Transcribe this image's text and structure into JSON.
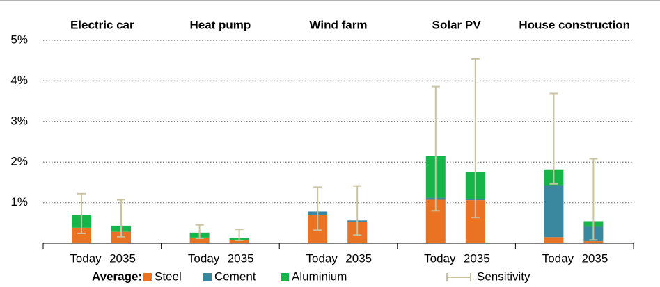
{
  "chart_data": {
    "type": "stacked_bar_error",
    "groups": [
      "Electric car",
      "Heat pump",
      "Wind farm",
      "Solar PV",
      "House construction"
    ],
    "periods": [
      "Today",
      "2035"
    ],
    "series": [
      {
        "name": "Steel",
        "color": "#e97323",
        "values": [
          0.38,
          0.28,
          0.14,
          0.08,
          0.7,
          0.52,
          1.07,
          1.06,
          0.15,
          0.05
        ]
      },
      {
        "name": "Cement",
        "color": "#3a87a0",
        "values": [
          0,
          0,
          0,
          0,
          0.08,
          0.04,
          0.05,
          0.03,
          1.28,
          0.37
        ]
      },
      {
        "name": "Aluminium",
        "color": "#16b54a",
        "values": [
          0.31,
          0.15,
          0.12,
          0.05,
          0,
          0,
          1.03,
          0.66,
          0.39,
          0.12
        ]
      }
    ],
    "sensitivity": {
      "name": "Sensitivity",
      "color": "#c9c3a2",
      "low": [
        0.24,
        0.16,
        0.12,
        0.07,
        0.32,
        0.2,
        0.8,
        0.63,
        1.46,
        0.08
      ],
      "high": [
        1.22,
        1.07,
        0.45,
        0.34,
        1.38,
        1.41,
        3.86,
        4.54,
        3.69,
        2.08
      ]
    },
    "legend_title": "Average:",
    "ylim": [
      0,
      5
    ],
    "yticks": [
      {
        "value": 1,
        "label": "1%"
      },
      {
        "value": 2,
        "label": "2%"
      },
      {
        "value": 3,
        "label": "3%"
      },
      {
        "value": 4,
        "label": "4%"
      },
      {
        "value": 5,
        "label": "5%"
      }
    ],
    "grid": true
  }
}
